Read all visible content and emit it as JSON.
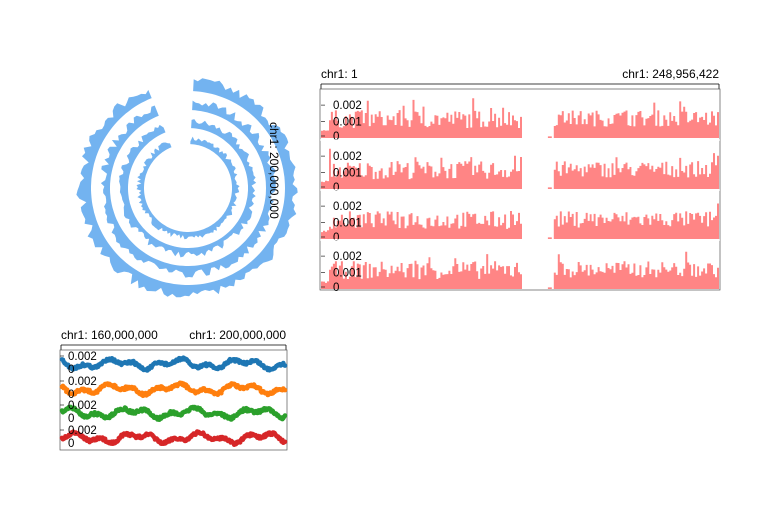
{
  "circular": {
    "label": "chr1: 200,000,000",
    "color": "#73b3f0",
    "rings": 4,
    "gap_start_deg": -22,
    "gap_end_deg": 3
  },
  "linear": {
    "left_label": "chr1: 1",
    "right_label": "chr1: 248,956,422",
    "color": "#ff8585",
    "domain": [
      1,
      248956422
    ],
    "ylim": [
      0,
      0.0028
    ],
    "yticks": [
      "0.002",
      "0.001",
      "0"
    ],
    "rows": 4
  },
  "scatter": {
    "left_label": "chr1: 160,000,000",
    "right_label": "chr1: 200,000,000",
    "domain": [
      160000000,
      200000000
    ],
    "ytick_top": "0.002",
    "ytick_zero": "0",
    "series_colors": [
      "#1f77b4",
      "#ff7f0e",
      "#2ca02c",
      "#d62728"
    ]
  },
  "chart_data": [
    {
      "type": "area",
      "title": "",
      "x_range": [
        "chr1: 1",
        "chr1: 248,956,422"
      ],
      "ylim": [
        0,
        0.0028
      ],
      "series_count": 4,
      "note_visible": "bar-like histogram, gap around centromere"
    },
    {
      "type": "scatter",
      "x_range": [
        "chr1: 160,000,000",
        "chr1: 200,000,000"
      ],
      "series_count": 4
    }
  ]
}
